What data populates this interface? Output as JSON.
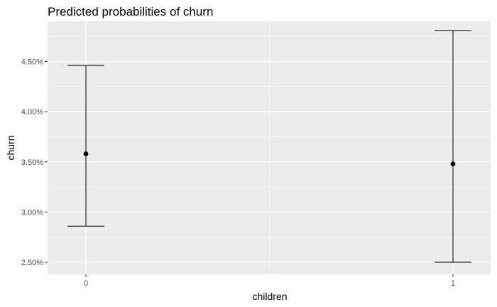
{
  "chart_data": {
    "type": "scatter",
    "title": "Predicted probabilities of churn",
    "xlabel": "children",
    "ylabel": "churn",
    "categories": [
      "0",
      "1"
    ],
    "series": [
      {
        "points": [
          {
            "x": "0",
            "y": 3.58,
            "lower": 2.86,
            "upper": 4.46
          },
          {
            "x": "1",
            "y": 3.48,
            "lower": 2.5,
            "upper": 4.81
          }
        ]
      }
    ],
    "yticks": [
      2.5,
      3.0,
      3.5,
      4.0,
      4.5
    ],
    "ytick_labels": [
      "2.50%",
      "3.00%",
      "3.50%",
      "4.00%",
      "4.50%"
    ],
    "ylim": [
      2.38,
      4.9
    ],
    "grid": true,
    "panel_background": "#ebebeb",
    "grid_color": "#ffffff",
    "mark_color": "#000000"
  }
}
